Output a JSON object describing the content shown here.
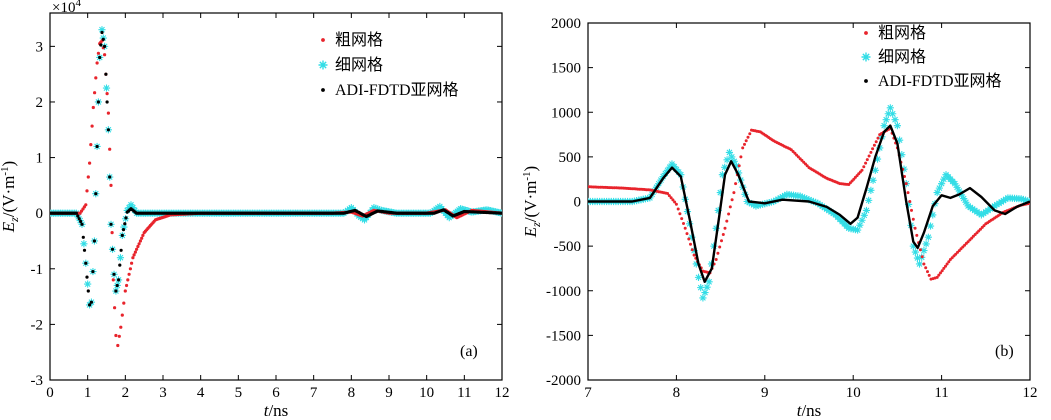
{
  "chart_data": [
    {
      "type": "line",
      "panel_label": "(a)",
      "xlabel": "t/ns",
      "xlabel_italic": "t",
      "xlabel_unit": "/ns",
      "ylabel": "Ez/(V·m⁻¹)",
      "ylabel_main": "E",
      "ylabel_sub": "z",
      "ylabel_unit": "/(V·m",
      "ylabel_sup": "-1",
      "ylabel_close": ")",
      "y_multiplier": "×10",
      "y_multiplier_exp": "4",
      "xlim": [
        0,
        12
      ],
      "ylim": [
        -3,
        3.6
      ],
      "xticks": [
        0,
        1,
        2,
        3,
        4,
        5,
        6,
        7,
        8,
        9,
        10,
        11,
        12
      ],
      "yticks": [
        -3,
        -2,
        -1,
        0,
        1,
        2,
        3
      ],
      "legend": [
        "粗网格",
        "细网格",
        "ADI-FDTD亚网格"
      ],
      "series": [
        {
          "name": "粗网格",
          "color": "#e8242c",
          "marker": "dot",
          "points": [
            [
              0,
              0
            ],
            [
              0.8,
              0
            ],
            [
              0.95,
              0.15
            ],
            [
              1.05,
              0.9
            ],
            [
              1.15,
              1.9
            ],
            [
              1.25,
              2.7
            ],
            [
              1.32,
              3.05
            ],
            [
              1.38,
              3.1
            ],
            [
              1.45,
              2.85
            ],
            [
              1.55,
              1.8
            ],
            [
              1.62,
              0.5
            ],
            [
              1.68,
              -1.2
            ],
            [
              1.75,
              -2.2
            ],
            [
              1.8,
              -2.38
            ],
            [
              1.88,
              -2.05
            ],
            [
              2.0,
              -1.4
            ],
            [
              2.2,
              -0.8
            ],
            [
              2.5,
              -0.35
            ],
            [
              2.8,
              -0.12
            ],
            [
              3.2,
              -0.03
            ],
            [
              4,
              0
            ],
            [
              7.5,
              0
            ],
            [
              8.0,
              0.02
            ],
            [
              8.3,
              -0.05
            ],
            [
              8.6,
              0.05
            ],
            [
              9,
              0.0
            ],
            [
              10,
              0.0
            ],
            [
              10.5,
              0.06
            ],
            [
              10.8,
              -0.08
            ],
            [
              11.2,
              0.05
            ],
            [
              12,
              0.0
            ]
          ]
        },
        {
          "name": "细网格",
          "color": "#33dde6",
          "marker": "star",
          "points": [
            [
              0,
              0
            ],
            [
              0.7,
              0
            ],
            [
              0.85,
              -0.2
            ],
            [
              0.95,
              -0.9
            ],
            [
              1.05,
              -1.65
            ],
            [
              1.1,
              -1.6
            ],
            [
              1.18,
              -0.5
            ],
            [
              1.25,
              1.2
            ],
            [
              1.32,
              2.8
            ],
            [
              1.38,
              3.3
            ],
            [
              1.45,
              3.0
            ],
            [
              1.55,
              1.5
            ],
            [
              1.62,
              -0.2
            ],
            [
              1.7,
              -1.1
            ],
            [
              1.75,
              -1.4
            ],
            [
              1.82,
              -1.2
            ],
            [
              1.92,
              -0.4
            ],
            [
              2.05,
              0.05
            ],
            [
              2.15,
              0.15
            ],
            [
              2.3,
              0.0
            ],
            [
              3,
              0
            ],
            [
              7.8,
              0
            ],
            [
              8.0,
              0.1
            ],
            [
              8.2,
              -0.05
            ],
            [
              8.35,
              -0.12
            ],
            [
              8.6,
              0.1
            ],
            [
              8.8,
              0.05
            ],
            [
              9.2,
              0
            ],
            [
              10.1,
              0
            ],
            [
              10.35,
              0.12
            ],
            [
              10.6,
              -0.08
            ],
            [
              10.9,
              0.08
            ],
            [
              11.2,
              0.02
            ],
            [
              11.6,
              0.06
            ],
            [
              12,
              0.0
            ]
          ]
        },
        {
          "name": "ADI-FDTD亚网格",
          "color": "#000000",
          "marker": "dot",
          "points": [
            [
              0,
              0
            ],
            [
              0.7,
              0
            ],
            [
              0.85,
              -0.2
            ],
            [
              0.95,
              -0.9
            ],
            [
              1.05,
              -1.65
            ],
            [
              1.1,
              -1.6
            ],
            [
              1.18,
              -0.5
            ],
            [
              1.25,
              1.2
            ],
            [
              1.32,
              2.8
            ],
            [
              1.38,
              3.25
            ],
            [
              1.45,
              3.0
            ],
            [
              1.55,
              1.5
            ],
            [
              1.62,
              -0.2
            ],
            [
              1.7,
              -1.1
            ],
            [
              1.75,
              -1.4
            ],
            [
              1.82,
              -1.2
            ],
            [
              1.92,
              -0.4
            ],
            [
              2.05,
              0.02
            ],
            [
              2.15,
              0.08
            ],
            [
              2.3,
              0.0
            ],
            [
              3,
              0
            ],
            [
              7.8,
              0
            ],
            [
              8.1,
              0.05
            ],
            [
              8.4,
              -0.06
            ],
            [
              8.7,
              0.04
            ],
            [
              9.2,
              0
            ],
            [
              10.2,
              0
            ],
            [
              10.45,
              0.06
            ],
            [
              10.7,
              -0.05
            ],
            [
              11.0,
              0.03
            ],
            [
              12,
              0.0
            ]
          ]
        }
      ]
    },
    {
      "type": "line",
      "panel_label": "(b)",
      "xlabel": "t/ns",
      "xlabel_italic": "t",
      "xlabel_unit": "/ns",
      "ylabel": "Ez/(V·m⁻¹)",
      "ylabel_main": "E",
      "ylabel_sub": "z",
      "ylabel_unit": "/(V·m",
      "ylabel_sup": "-1",
      "ylabel_close": ")",
      "xlim": [
        7,
        12
      ],
      "ylim": [
        -2000,
        2000
      ],
      "xticks": [
        7,
        8,
        9,
        10,
        11,
        12
      ],
      "yticks": [
        -2000,
        -1500,
        -1000,
        -500,
        0,
        500,
        1000,
        1500,
        2000
      ],
      "legend": [
        "粗网格",
        "细网格",
        "ADI-FDTD亚网格"
      ],
      "series": [
        {
          "name": "粗网格",
          "color": "#e8242c",
          "marker": "dot",
          "points": [
            [
              7,
              165
            ],
            [
              7.4,
              150
            ],
            [
              7.7,
              130
            ],
            [
              7.9,
              90
            ],
            [
              8.0,
              -30
            ],
            [
              8.1,
              -300
            ],
            [
              8.2,
              -600
            ],
            [
              8.3,
              -780
            ],
            [
              8.38,
              -800
            ],
            [
              8.45,
              -650
            ],
            [
              8.55,
              -300
            ],
            [
              8.65,
              100
            ],
            [
              8.75,
              600
            ],
            [
              8.85,
              800
            ],
            [
              8.95,
              780
            ],
            [
              9.1,
              680
            ],
            [
              9.3,
              580
            ],
            [
              9.5,
              380
            ],
            [
              9.7,
              260
            ],
            [
              9.85,
              200
            ],
            [
              9.95,
              190
            ],
            [
              10.1,
              350
            ],
            [
              10.2,
              550
            ],
            [
              10.3,
              750
            ],
            [
              10.42,
              820
            ],
            [
              10.5,
              600
            ],
            [
              10.6,
              200
            ],
            [
              10.7,
              -300
            ],
            [
              10.8,
              -700
            ],
            [
              10.88,
              -870
            ],
            [
              10.95,
              -850
            ],
            [
              11.1,
              -650
            ],
            [
              11.3,
              -450
            ],
            [
              11.5,
              -250
            ],
            [
              11.7,
              -120
            ],
            [
              11.9,
              -40
            ],
            [
              12,
              -20
            ]
          ]
        },
        {
          "name": "细网格",
          "color": "#33dde6",
          "marker": "star",
          "points": [
            [
              7,
              0
            ],
            [
              7.5,
              0
            ],
            [
              7.7,
              40
            ],
            [
              7.85,
              280
            ],
            [
              7.95,
              420
            ],
            [
              8.05,
              300
            ],
            [
              8.15,
              -250
            ],
            [
              8.25,
              -850
            ],
            [
              8.3,
              -1080
            ],
            [
              8.37,
              -900
            ],
            [
              8.45,
              -300
            ],
            [
              8.52,
              300
            ],
            [
              8.6,
              550
            ],
            [
              8.68,
              400
            ],
            [
              8.8,
              0
            ],
            [
              8.9,
              -50
            ],
            [
              9.1,
              0
            ],
            [
              9.25,
              80
            ],
            [
              9.4,
              60
            ],
            [
              9.6,
              -20
            ],
            [
              9.8,
              -150
            ],
            [
              9.95,
              -300
            ],
            [
              10.05,
              -320
            ],
            [
              10.15,
              -100
            ],
            [
              10.25,
              350
            ],
            [
              10.35,
              850
            ],
            [
              10.42,
              1050
            ],
            [
              10.5,
              850
            ],
            [
              10.6,
              200
            ],
            [
              10.68,
              -500
            ],
            [
              10.75,
              -700
            ],
            [
              10.85,
              -400
            ],
            [
              10.95,
              100
            ],
            [
              11.05,
              300
            ],
            [
              11.15,
              200
            ],
            [
              11.3,
              -50
            ],
            [
              11.45,
              -150
            ],
            [
              11.6,
              -50
            ],
            [
              11.75,
              40
            ],
            [
              11.9,
              30
            ],
            [
              12,
              0
            ]
          ]
        },
        {
          "name": "ADI-FDTD亚网格",
          "color": "#000000",
          "marker": "line",
          "points": [
            [
              7,
              0
            ],
            [
              7.5,
              0
            ],
            [
              7.7,
              40
            ],
            [
              7.85,
              260
            ],
            [
              7.95,
              380
            ],
            [
              8.05,
              280
            ],
            [
              8.15,
              -200
            ],
            [
              8.25,
              -700
            ],
            [
              8.32,
              -900
            ],
            [
              8.4,
              -750
            ],
            [
              8.48,
              -200
            ],
            [
              8.55,
              300
            ],
            [
              8.62,
              450
            ],
            [
              8.7,
              300
            ],
            [
              8.82,
              0
            ],
            [
              9.0,
              -20
            ],
            [
              9.2,
              20
            ],
            [
              9.5,
              0
            ],
            [
              9.7,
              -60
            ],
            [
              9.85,
              -150
            ],
            [
              9.97,
              -250
            ],
            [
              10.05,
              -180
            ],
            [
              10.15,
              150
            ],
            [
              10.25,
              500
            ],
            [
              10.35,
              780
            ],
            [
              10.42,
              850
            ],
            [
              10.5,
              650
            ],
            [
              10.6,
              0
            ],
            [
              10.68,
              -450
            ],
            [
              10.73,
              -520
            ],
            [
              10.8,
              -350
            ],
            [
              10.9,
              -50
            ],
            [
              11.0,
              70
            ],
            [
              11.1,
              40
            ],
            [
              11.2,
              80
            ],
            [
              11.32,
              150
            ],
            [
              11.45,
              50
            ],
            [
              11.6,
              -100
            ],
            [
              11.72,
              -140
            ],
            [
              11.85,
              -60
            ],
            [
              12,
              0
            ]
          ]
        }
      ]
    }
  ]
}
